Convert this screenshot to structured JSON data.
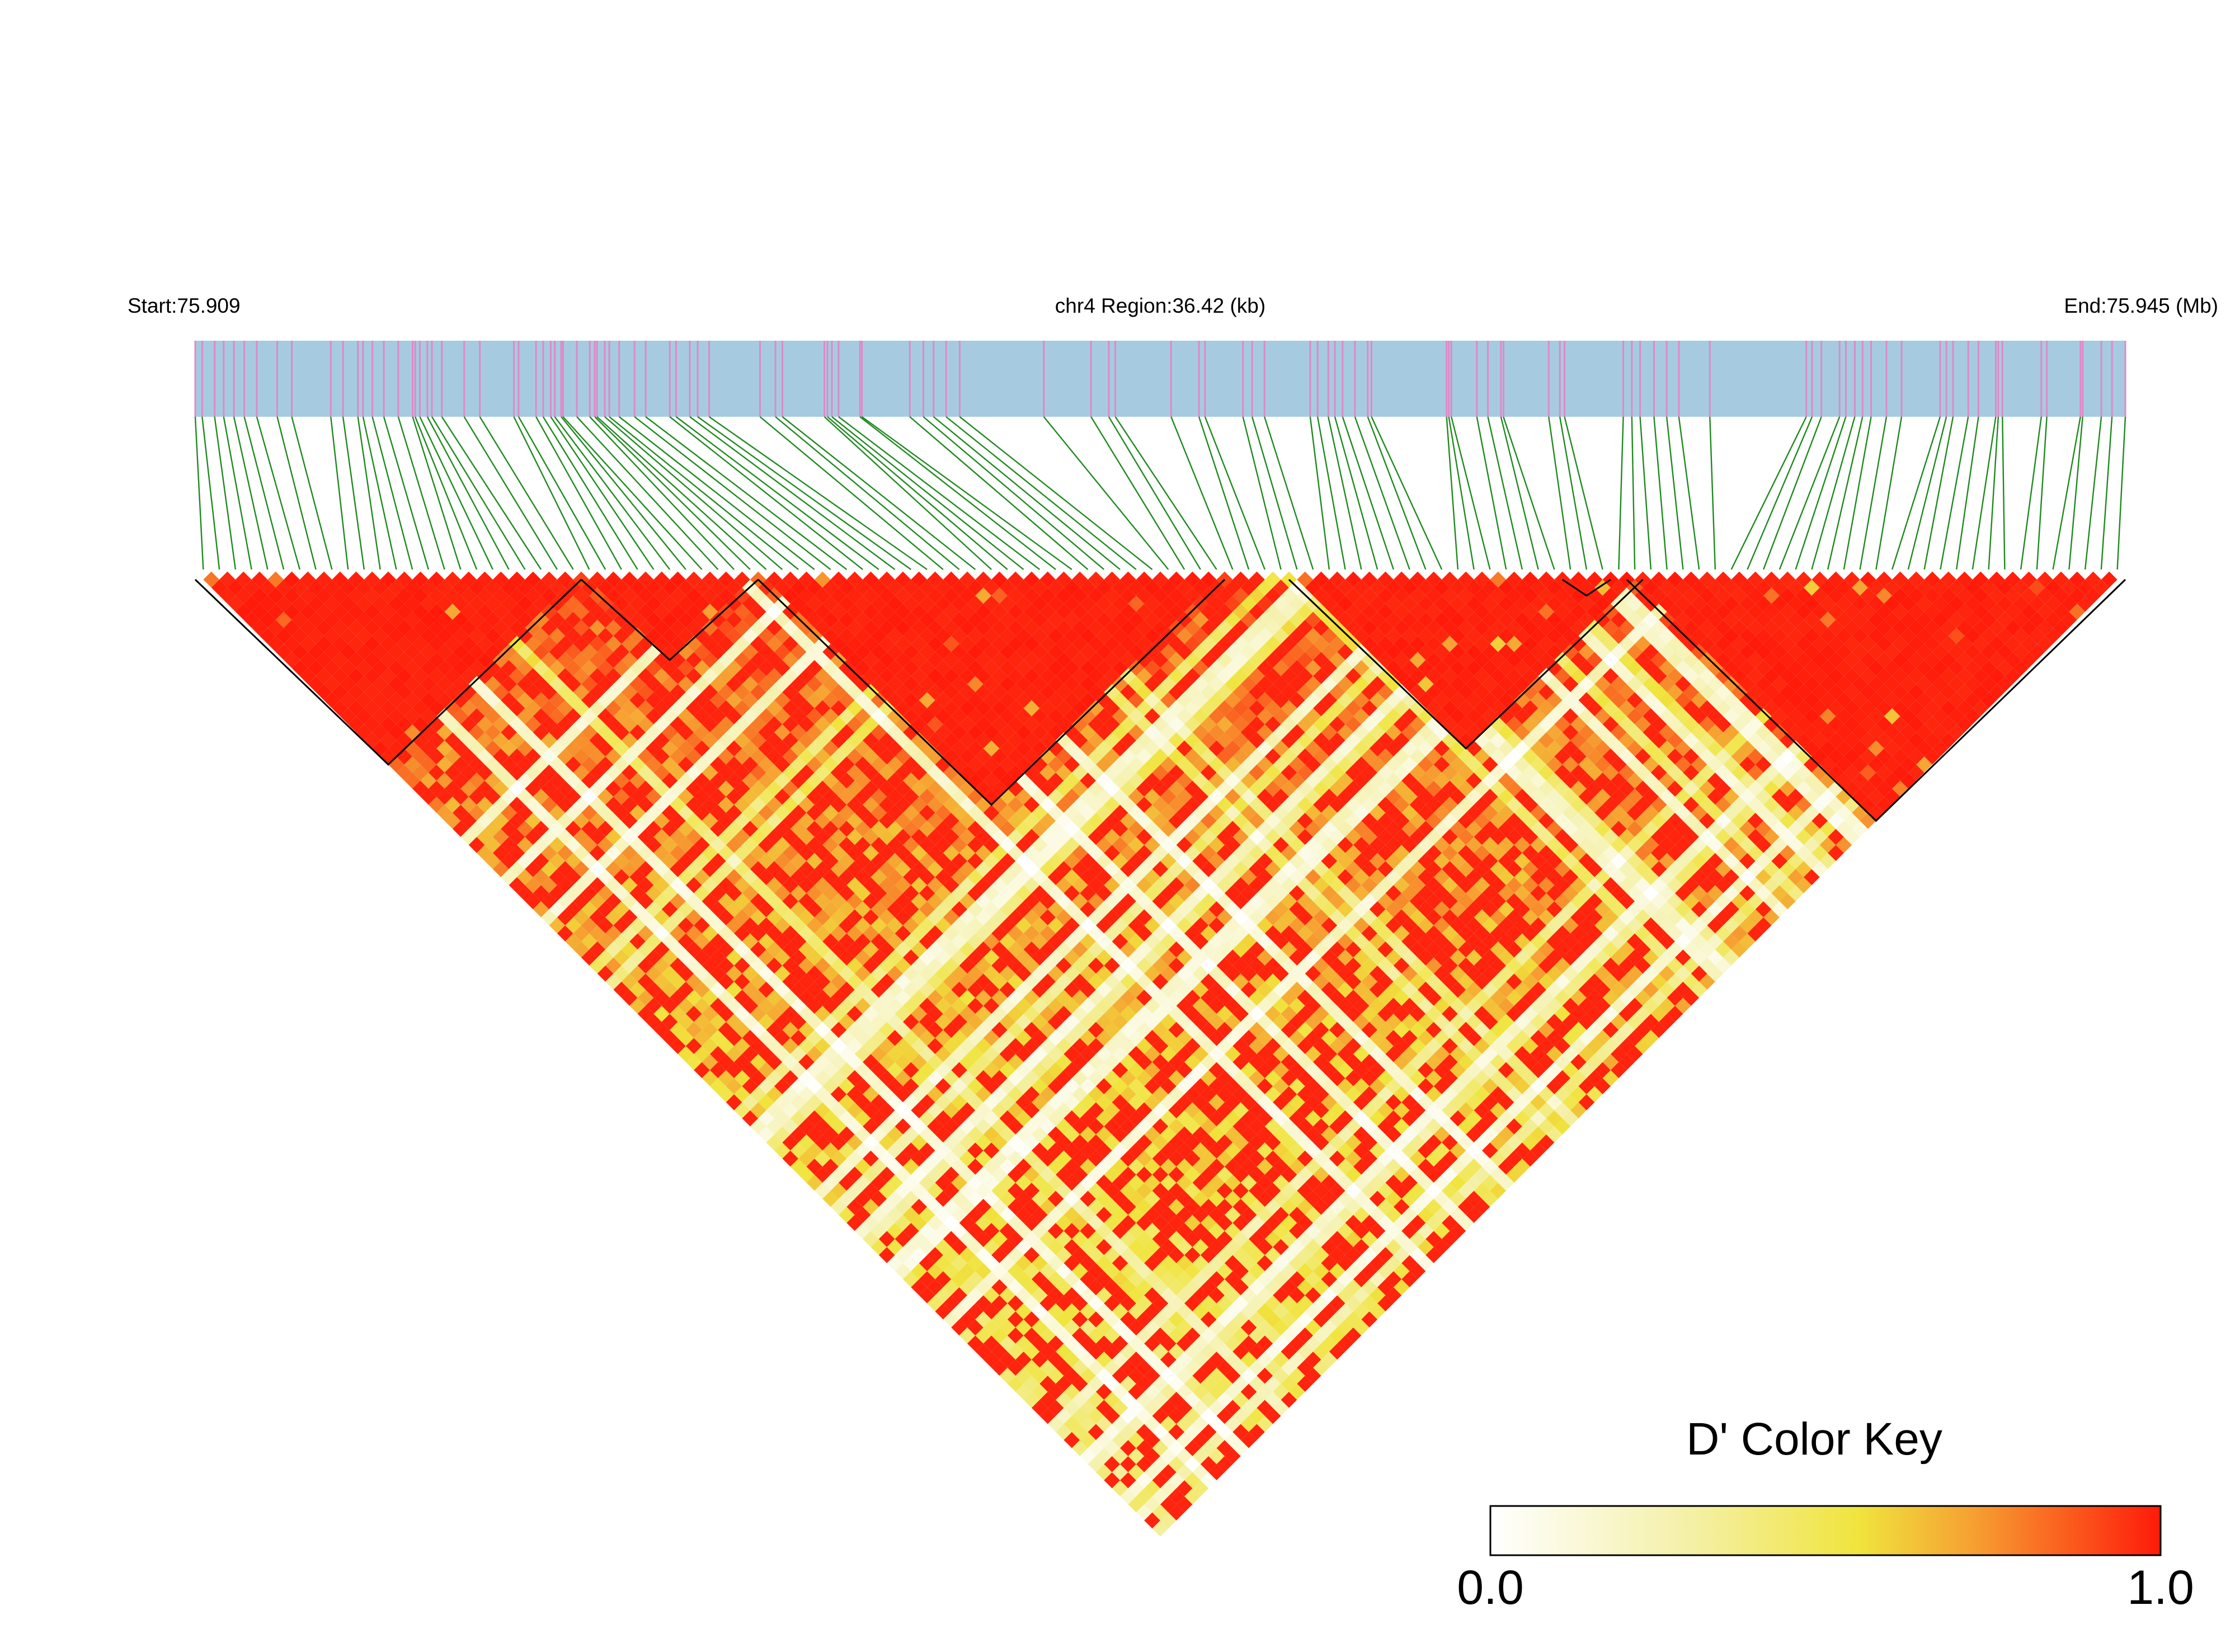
{
  "chart_data": {
    "type": "heatmap",
    "title": "",
    "region": {
      "start_label": "Start:75.909",
      "center_label": "chr4 Region:36.42 (kb)",
      "end_label": "End:75.945 (Mb)",
      "start_mb": 75.909,
      "end_mb": 75.945,
      "span_kb": 36.42,
      "chromosome": "chr4"
    },
    "snp_count": 120,
    "ld_measure": "D'",
    "value_range": [
      0.0,
      1.0
    ],
    "haplotype_blocks": [
      {
        "first_snp": 1,
        "last_snp": 24
      },
      {
        "first_snp": 25,
        "last_snp": 35
      },
      {
        "first_snp": 36,
        "last_snp": 64
      },
      {
        "first_snp": 69,
        "last_snp": 90
      },
      {
        "first_snp": 86,
        "last_snp": 88
      },
      {
        "first_snp": 90,
        "last_snp": 120
      }
    ],
    "color_key": {
      "title": "D' Color Key",
      "min_label": "0.0",
      "max_label": "1.0",
      "stops": [
        "#ffffff",
        "#f4f0a6",
        "#f0e43d",
        "#f6a032",
        "#ff1a0a"
      ]
    },
    "colors": {
      "chrom_bar": "#a6cbe1",
      "snp_tick": "#e088c8",
      "connector": "#1f8a1f",
      "high_ld": "#ff0000",
      "low_ld": "#fffde6",
      "block_outline": "#000000"
    }
  }
}
